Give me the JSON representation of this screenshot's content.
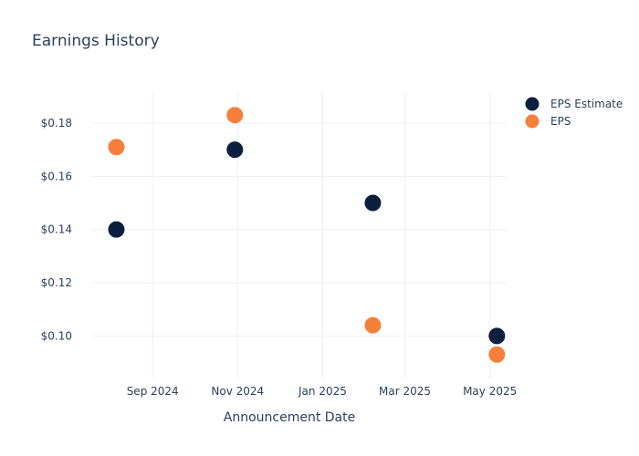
{
  "chart_data": {
    "type": "scatter",
    "title": "Earnings History",
    "xlabel": "Announcement Date",
    "ylabel": "",
    "x_ticks": [
      "Sep 2024",
      "Nov 2024",
      "Jan 2025",
      "Mar 2025",
      "May 2025"
    ],
    "y_ticks": [
      "$0.10",
      "$0.12",
      "$0.14",
      "$0.16",
      "$0.18"
    ],
    "ylim": [
      0.084,
      0.192
    ],
    "xlim": [
      "2024-07-19",
      "2025-05-13"
    ],
    "grid": true,
    "legend_position": "top-right",
    "series": [
      {
        "name": "EPS Estimate",
        "color": "#0d1f40",
        "points": [
          {
            "x": "2024-08-06",
            "y": 0.14
          },
          {
            "x": "2024-10-30",
            "y": 0.17
          },
          {
            "x": "2025-02-06",
            "y": 0.15
          },
          {
            "x": "2025-05-06",
            "y": 0.1
          }
        ]
      },
      {
        "name": "EPS",
        "color": "#f4803b",
        "points": [
          {
            "x": "2024-08-06",
            "y": 0.171
          },
          {
            "x": "2024-10-30",
            "y": 0.183
          },
          {
            "x": "2025-02-06",
            "y": 0.104
          },
          {
            "x": "2025-05-06",
            "y": 0.093
          }
        ]
      }
    ]
  }
}
